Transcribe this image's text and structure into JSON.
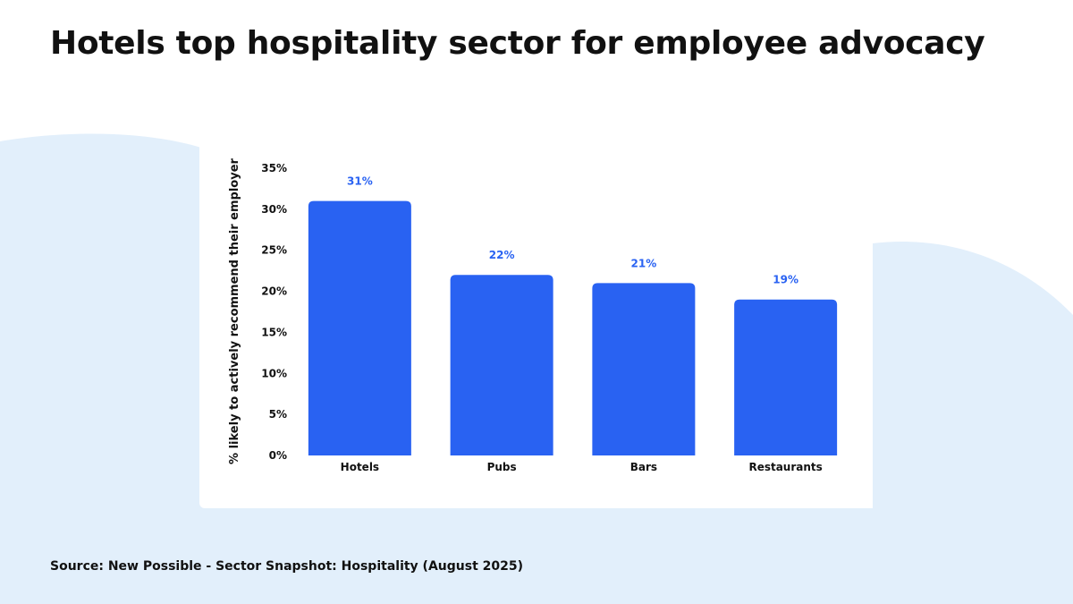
{
  "title": "Hotels top hospitality sector for employee advocacy",
  "source": "Source: New Possible - Sector Snapshot: Hospitality (August 2025)",
  "colors": {
    "bar": "#2962f2",
    "data_label": "#2962f2",
    "background_shape": "#e2effb",
    "card": "#ffffff",
    "text": "#111111"
  },
  "chart_data": {
    "type": "bar",
    "title": "",
    "xlabel": "",
    "ylabel": "% likely to actively recommend their employer",
    "categories": [
      "Hotels",
      "Pubs",
      "Bars",
      "Restaurants"
    ],
    "values": [
      31,
      22,
      21,
      19
    ],
    "data_labels": [
      "31%",
      "22%",
      "21%",
      "19%"
    ],
    "ylim": [
      0,
      35
    ],
    "yticks": [
      0,
      5,
      10,
      15,
      20,
      25,
      30,
      35
    ],
    "ytick_labels": [
      "0%",
      "5%",
      "10%",
      "15%",
      "20%",
      "25%",
      "30%",
      "35%"
    ],
    "grid": false,
    "legend": "none"
  }
}
